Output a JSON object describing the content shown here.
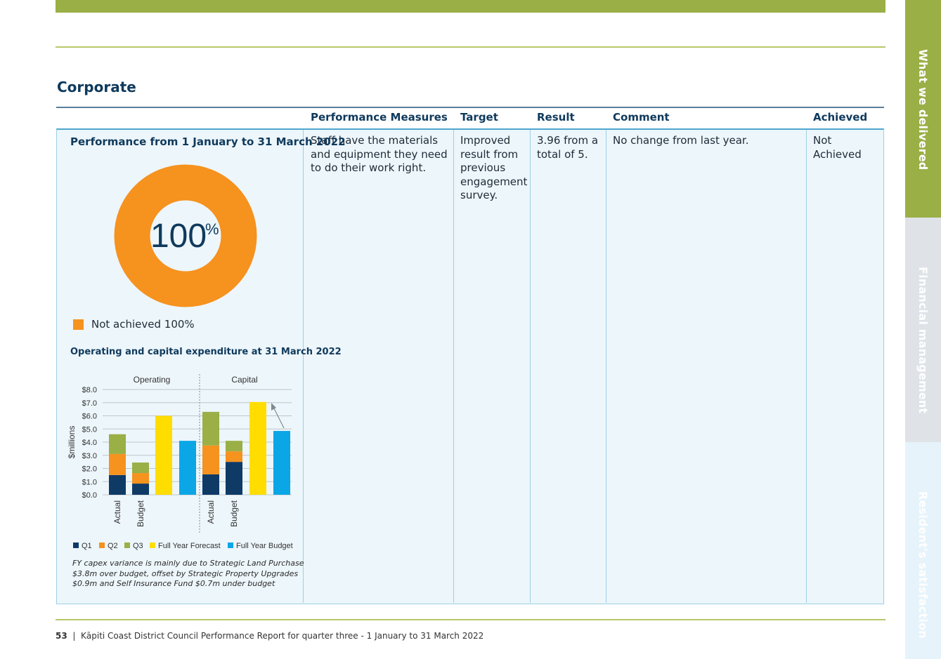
{
  "side_tabs": [
    {
      "label": "What we delivered",
      "color": "#9aaf46"
    },
    {
      "label": "Financial management",
      "color": "#dfe3e8"
    },
    {
      "label": "Resident's satisfaction",
      "color": "#e6f3fb"
    }
  ],
  "section_title": "Corporate",
  "table": {
    "headers": [
      "Performance Measures",
      "Target",
      "Result",
      "Comment",
      "Achieved"
    ],
    "row": {
      "measure": "Staff have the materials and equipment they need to do their work right.",
      "target": "Improved result from previous engagement survey.",
      "result": "3.96 from a total of 5.",
      "comment": "No change from last year.",
      "achieved": "Not Achieved"
    }
  },
  "performance_panel": {
    "title": "Performance from 1 January to 31 March 2022",
    "donut_value": "100",
    "donut_unit": "%",
    "legend": "Not achieved 100%",
    "legend_color": "#f6921e"
  },
  "chart_data": {
    "type": "bar",
    "title": "Operating and capital expenditure at 31 March 2022",
    "ylabel": "$millions",
    "ylim": [
      0,
      8
    ],
    "yticks": [
      "$0.0",
      "$1.0",
      "$2.0",
      "$3.0",
      "$4.0",
      "$5.0",
      "$6.0",
      "$7.0",
      "$8.0"
    ],
    "groups": [
      "Operating",
      "Capital"
    ],
    "categories": [
      "Actual",
      "Budget",
      "Full Year Forecast",
      "Full Year Budget",
      "Actual",
      "Budget",
      "Full Year Forecast",
      "Full Year Budget"
    ],
    "x_tick_labels": [
      "Actual",
      "Budget",
      "Actual",
      "Budget"
    ],
    "series": [
      {
        "name": "Q1",
        "color": "#0f3a66",
        "values": [
          1.5,
          0.85,
          0,
          0,
          1.55,
          2.5,
          0,
          0
        ]
      },
      {
        "name": "Q2",
        "color": "#f6921e",
        "values": [
          1.6,
          0.8,
          0,
          0,
          2.2,
          0.8,
          0,
          0
        ]
      },
      {
        "name": "Q3",
        "color": "#9aaf46",
        "values": [
          1.5,
          0.8,
          0,
          0,
          2.55,
          0.8,
          0,
          0
        ]
      },
      {
        "name": "Full Year Forecast",
        "color": "#ffdd00",
        "values": [
          0,
          0,
          6.0,
          0,
          0,
          0,
          7.05,
          0
        ]
      },
      {
        "name": "Full Year Budget",
        "color": "#0aa6e6",
        "values": [
          0,
          0,
          0,
          4.1,
          0,
          0,
          0,
          4.85
        ]
      }
    ],
    "annotation": "FY capex variance is mainly due to Strategic Land Purchase $3.8m over budget, offset by Strategic Property Upgrades $0.9m and Self Insurance Fund $0.7m under budget"
  },
  "footer": {
    "page_number": "53",
    "text": "Kāpiti Coast District Council Performance Report for quarter three - 1 January to 31 March 2022"
  }
}
